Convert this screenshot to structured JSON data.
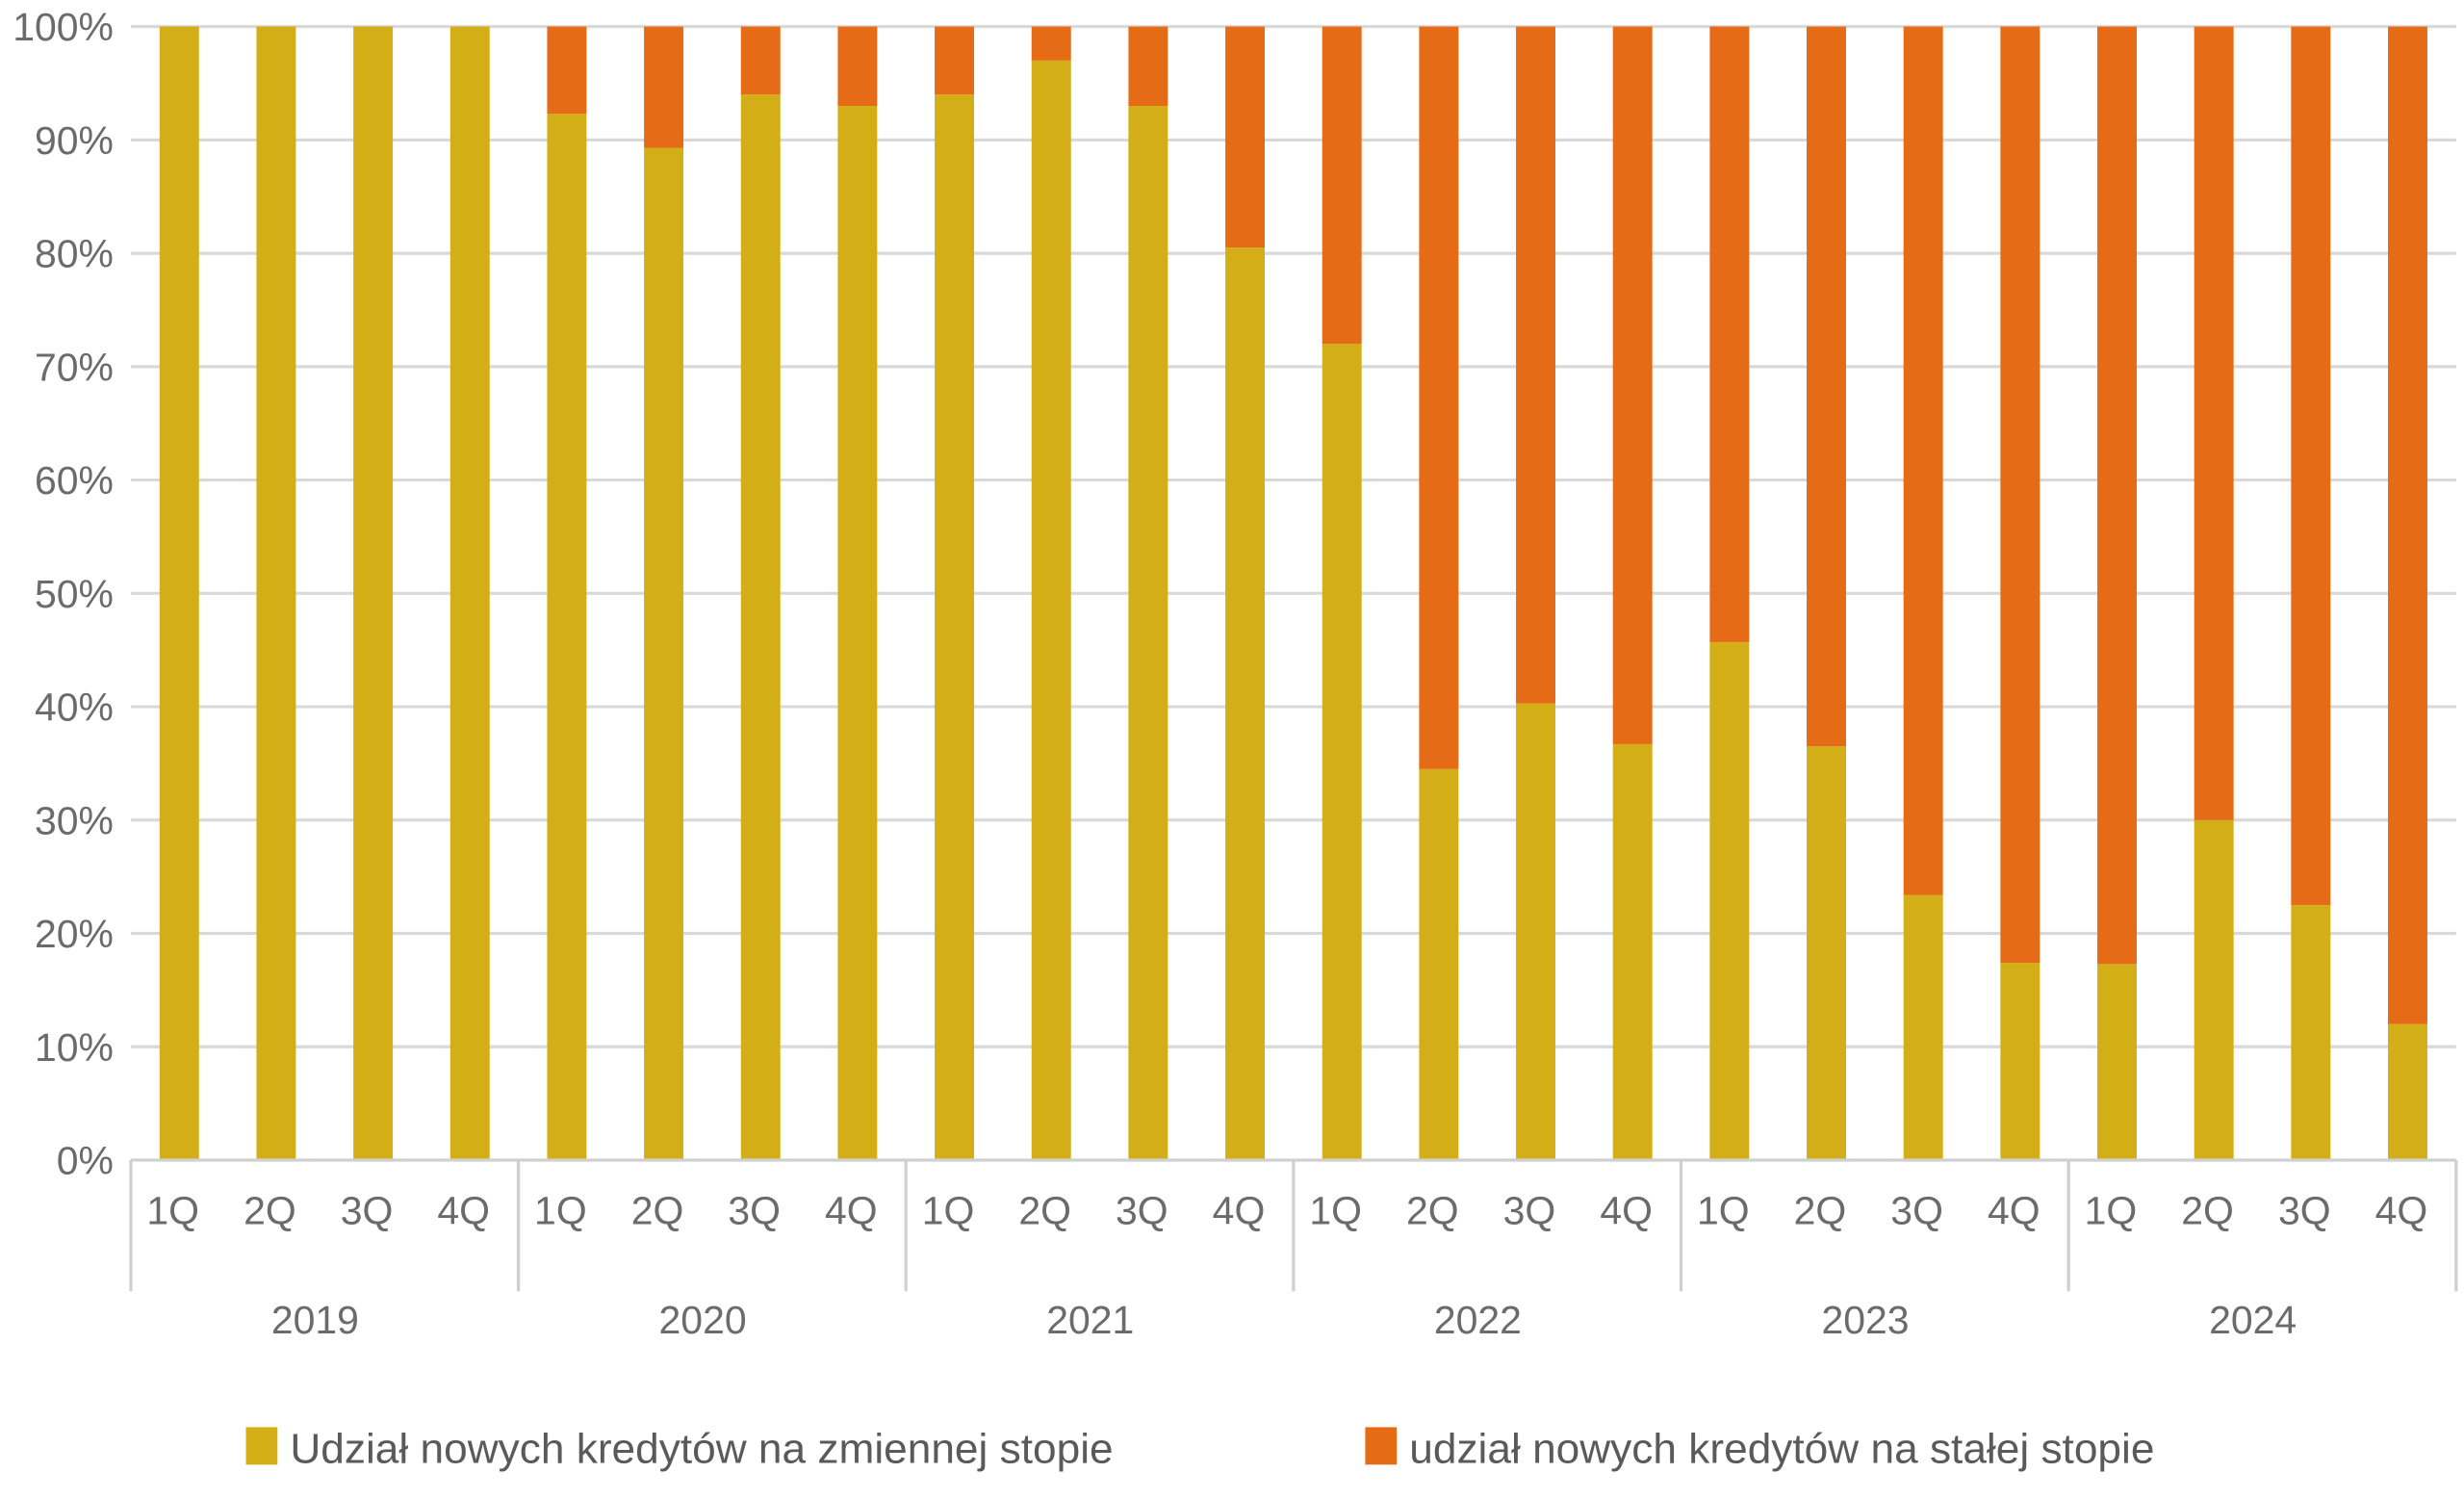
{
  "chart_data": {
    "type": "bar",
    "stacked": true,
    "title": "",
    "xlabel": "",
    "ylabel": "",
    "ylim": [
      0,
      100
    ],
    "yticks": [
      "0%",
      "10%",
      "20%",
      "30%",
      "40%",
      "50%",
      "60%",
      "70%",
      "80%",
      "90%",
      "100%"
    ],
    "grid": true,
    "legend_position": "bottom",
    "groups": [
      "2019",
      "2020",
      "2021",
      "2022",
      "2023",
      "2024"
    ],
    "quarters": [
      "1Q",
      "2Q",
      "3Q",
      "4Q"
    ],
    "series": [
      {
        "name": "Udział nowych kredytów na zmiennej stopie",
        "color": "#d4ae17",
        "values": [
          100,
          100,
          100,
          100,
          92.3,
          89.3,
          94,
          93,
          94,
          97,
          93,
          80.5,
          72,
          34.5,
          40.3,
          36.7,
          45.7,
          36.5,
          23.4,
          17.4,
          17.3,
          30,
          22.5,
          12
        ]
      },
      {
        "name": "udział nowych kredytów na stałej stopie",
        "color": "#e66b17",
        "values": [
          0,
          0,
          0,
          0,
          7.7,
          10.7,
          6,
          7,
          6,
          3,
          7,
          19.5,
          28,
          65.5,
          59.7,
          63.3,
          54.3,
          63.5,
          76.6,
          82.6,
          82.7,
          70,
          77.5,
          88
        ]
      }
    ]
  }
}
